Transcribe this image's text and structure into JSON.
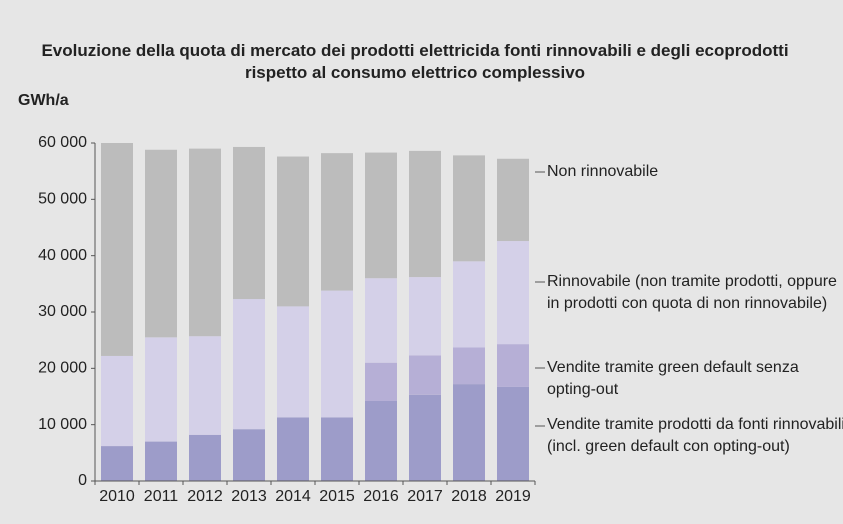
{
  "chart_data": {
    "type": "stacked_bar",
    "title": "Evoluzione della quota di mercato dei prodotti elettricida fonti rinnovabili e degli ecoprodotti rispetto al consumo elettrico complessivo",
    "y_axis_label": "GWh/a",
    "categories": [
      "2010",
      "2011",
      "2012",
      "2013",
      "2014",
      "2015",
      "2016",
      "2017",
      "2018",
      "2019"
    ],
    "series": [
      {
        "name": "Vendite tramite prodotti da fonti rinnovabili (incl. green default con opting-out)",
        "color": "#9d9cc9",
        "values": [
          6200,
          7000,
          8200,
          9200,
          11300,
          11300,
          14200,
          15300,
          17200,
          16700
        ]
      },
      {
        "name": "Vendite tramite green default senza opting-out",
        "color": "#b6afd6",
        "values": [
          0,
          0,
          0,
          0,
          0,
          0,
          6800,
          7000,
          6500,
          7600
        ]
      },
      {
        "name": "Rinnovabile (non tramite prodotti, oppure in prodotti con quota di non rinnovabile)",
        "color": "#d4d0e8",
        "values": [
          16000,
          18500,
          17500,
          23100,
          19700,
          22500,
          15000,
          13900,
          15300,
          18300
        ]
      },
      {
        "name": "Non rinnovabile",
        "color": "#bcbcbc",
        "values": [
          37800,
          33300,
          33300,
          27000,
          26600,
          24400,
          22300,
          22400,
          18800,
          14600
        ]
      }
    ],
    "ylim": [
      0,
      60000
    ],
    "yticks": [
      0,
      {
        "value": 10000,
        "label": "10 000"
      },
      {
        "value": 20000,
        "label": "20 000"
      },
      {
        "value": 30000,
        "label": "30 000"
      },
      {
        "value": 40000,
        "label": "40 000"
      },
      {
        "value": 50000,
        "label": "50 000"
      },
      {
        "value": 60000,
        "label": "60 000"
      }
    ]
  }
}
